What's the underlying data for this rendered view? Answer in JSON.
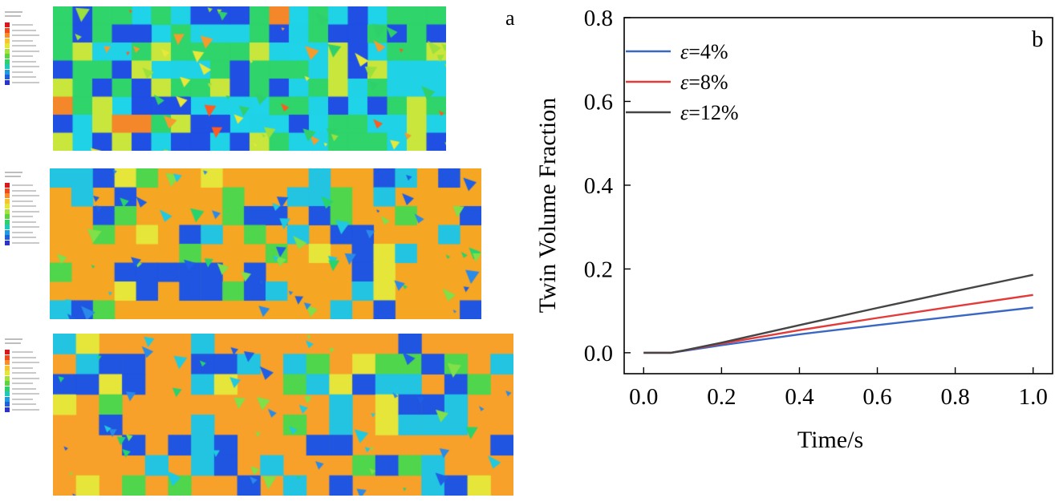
{
  "panel_a": {
    "label": "a",
    "contour_plots": [
      {
        "name": "contour-plot-1",
        "base_color": "#1fd3e8",
        "seed": 11
      },
      {
        "name": "contour-plot-2",
        "base_color": "#f5a623",
        "seed": 29
      },
      {
        "name": "contour-plot-3",
        "base_color": "#f7a12a",
        "seed": 47
      }
    ],
    "legend_colors": [
      "#d7191c",
      "#f04a1d",
      "#fb8c2a",
      "#f4c431",
      "#e6e53a",
      "#a8e03c",
      "#5ad43f",
      "#2fcf6e",
      "#20c9b5",
      "#1c9de0",
      "#1f5fe0",
      "#2e33c8"
    ]
  },
  "panel_b": {
    "label": "b"
  },
  "chart_data": {
    "type": "line",
    "xlabel": "Time/s",
    "ylabel": "Twin Volume Fraction",
    "xlim": [
      -0.05,
      1.05
    ],
    "ylim": [
      -0.05,
      0.8
    ],
    "xticks": [
      "0.0",
      "0.2",
      "0.4",
      "0.6",
      "0.8",
      "1.0"
    ],
    "yticks": [
      "0.0",
      "0.2",
      "0.4",
      "0.6",
      "0.8"
    ],
    "legend_position": "top-left",
    "series": [
      {
        "name": "ε=4%",
        "symbol": "ε",
        "suffix": "=4%",
        "color": "#3a66c4",
        "x": [
          0,
          0.07,
          0.1,
          0.2,
          0.4,
          0.6,
          0.8,
          1.0
        ],
        "y": [
          0,
          0,
          0.004,
          0.018,
          0.044,
          0.066,
          0.087,
          0.108
        ]
      },
      {
        "name": "ε=8%",
        "symbol": "ε",
        "suffix": "=8%",
        "color": "#e33a3a",
        "x": [
          0,
          0.07,
          0.1,
          0.2,
          0.4,
          0.6,
          0.8,
          1.0
        ],
        "y": [
          0,
          0,
          0.005,
          0.022,
          0.054,
          0.083,
          0.111,
          0.138
        ]
      },
      {
        "name": "ε=12%",
        "symbol": "ε",
        "suffix": "=12%",
        "color": "#454545",
        "x": [
          0,
          0.07,
          0.1,
          0.2,
          0.4,
          0.6,
          0.8,
          1.0
        ],
        "y": [
          0,
          0,
          0.005,
          0.024,
          0.066,
          0.107,
          0.147,
          0.186
        ]
      }
    ]
  }
}
